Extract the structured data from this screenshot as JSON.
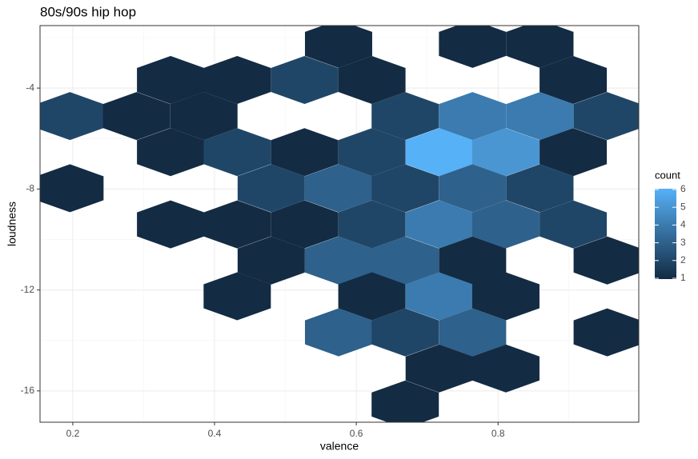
{
  "chart_data": {
    "type": "hexbin",
    "title": "80s/90s hip hop",
    "x_label": "valence",
    "y_label": "loudness",
    "x": [
      0.575,
      0.764,
      0.859,
      0.338,
      0.432,
      0.527,
      0.622,
      0.906,
      0.196,
      0.29,
      0.385,
      0.669,
      0.764,
      0.859,
      0.954,
      0.338,
      0.432,
      0.527,
      0.622,
      0.717,
      0.811,
      0.906,
      0.196,
      0.48,
      0.575,
      0.669,
      0.764,
      0.859,
      0.338,
      0.432,
      0.527,
      0.622,
      0.717,
      0.811,
      0.906,
      0.48,
      0.575,
      0.669,
      0.764,
      0.954,
      0.432,
      0.622,
      0.717,
      0.811,
      0.575,
      0.669,
      0.764,
      0.954,
      0.717,
      0.811,
      0.669
    ],
    "y": [
      -2.25,
      -2.25,
      -2.25,
      -3.68,
      -3.68,
      -3.68,
      -3.68,
      -3.68,
      -5.11,
      -5.11,
      -5.11,
      -5.11,
      -5.11,
      -5.11,
      -5.11,
      -6.54,
      -6.54,
      -6.54,
      -6.54,
      -6.54,
      -6.54,
      -6.54,
      -7.97,
      -7.97,
      -7.97,
      -7.97,
      -7.97,
      -7.97,
      -9.4,
      -9.4,
      -9.4,
      -9.4,
      -9.4,
      -9.4,
      -9.4,
      -10.83,
      -10.83,
      -10.83,
      -10.83,
      -10.83,
      -12.25,
      -12.25,
      -12.25,
      -12.25,
      -13.68,
      -13.68,
      -13.68,
      -13.68,
      -15.11,
      -15.11,
      -16.54
    ],
    "values": [
      1,
      1,
      1,
      1,
      1,
      2,
      1,
      1,
      2,
      1,
      1,
      2,
      4,
      4,
      2,
      1,
      2,
      1,
      2,
      6,
      5,
      1,
      1,
      2,
      3,
      2,
      3,
      2,
      1,
      1,
      1,
      2,
      4,
      3,
      2,
      1,
      3,
      3,
      1,
      1,
      1,
      1,
      4,
      1,
      3,
      2,
      3,
      1,
      1,
      1,
      1
    ],
    "xlim": [
      0.1538,
      0.9985
    ],
    "xticks": [
      0.2,
      0.4,
      0.6,
      0.8
    ],
    "ylim": [
      -17.24,
      -1.524
    ],
    "yticks": [
      -16,
      -12,
      -8,
      -4
    ],
    "grid": true,
    "legend": {
      "title": "count",
      "ticks": [
        1,
        2,
        3,
        4,
        5,
        6
      ]
    },
    "color_low": "#132B43",
    "color_high": "#56B1F7"
  }
}
